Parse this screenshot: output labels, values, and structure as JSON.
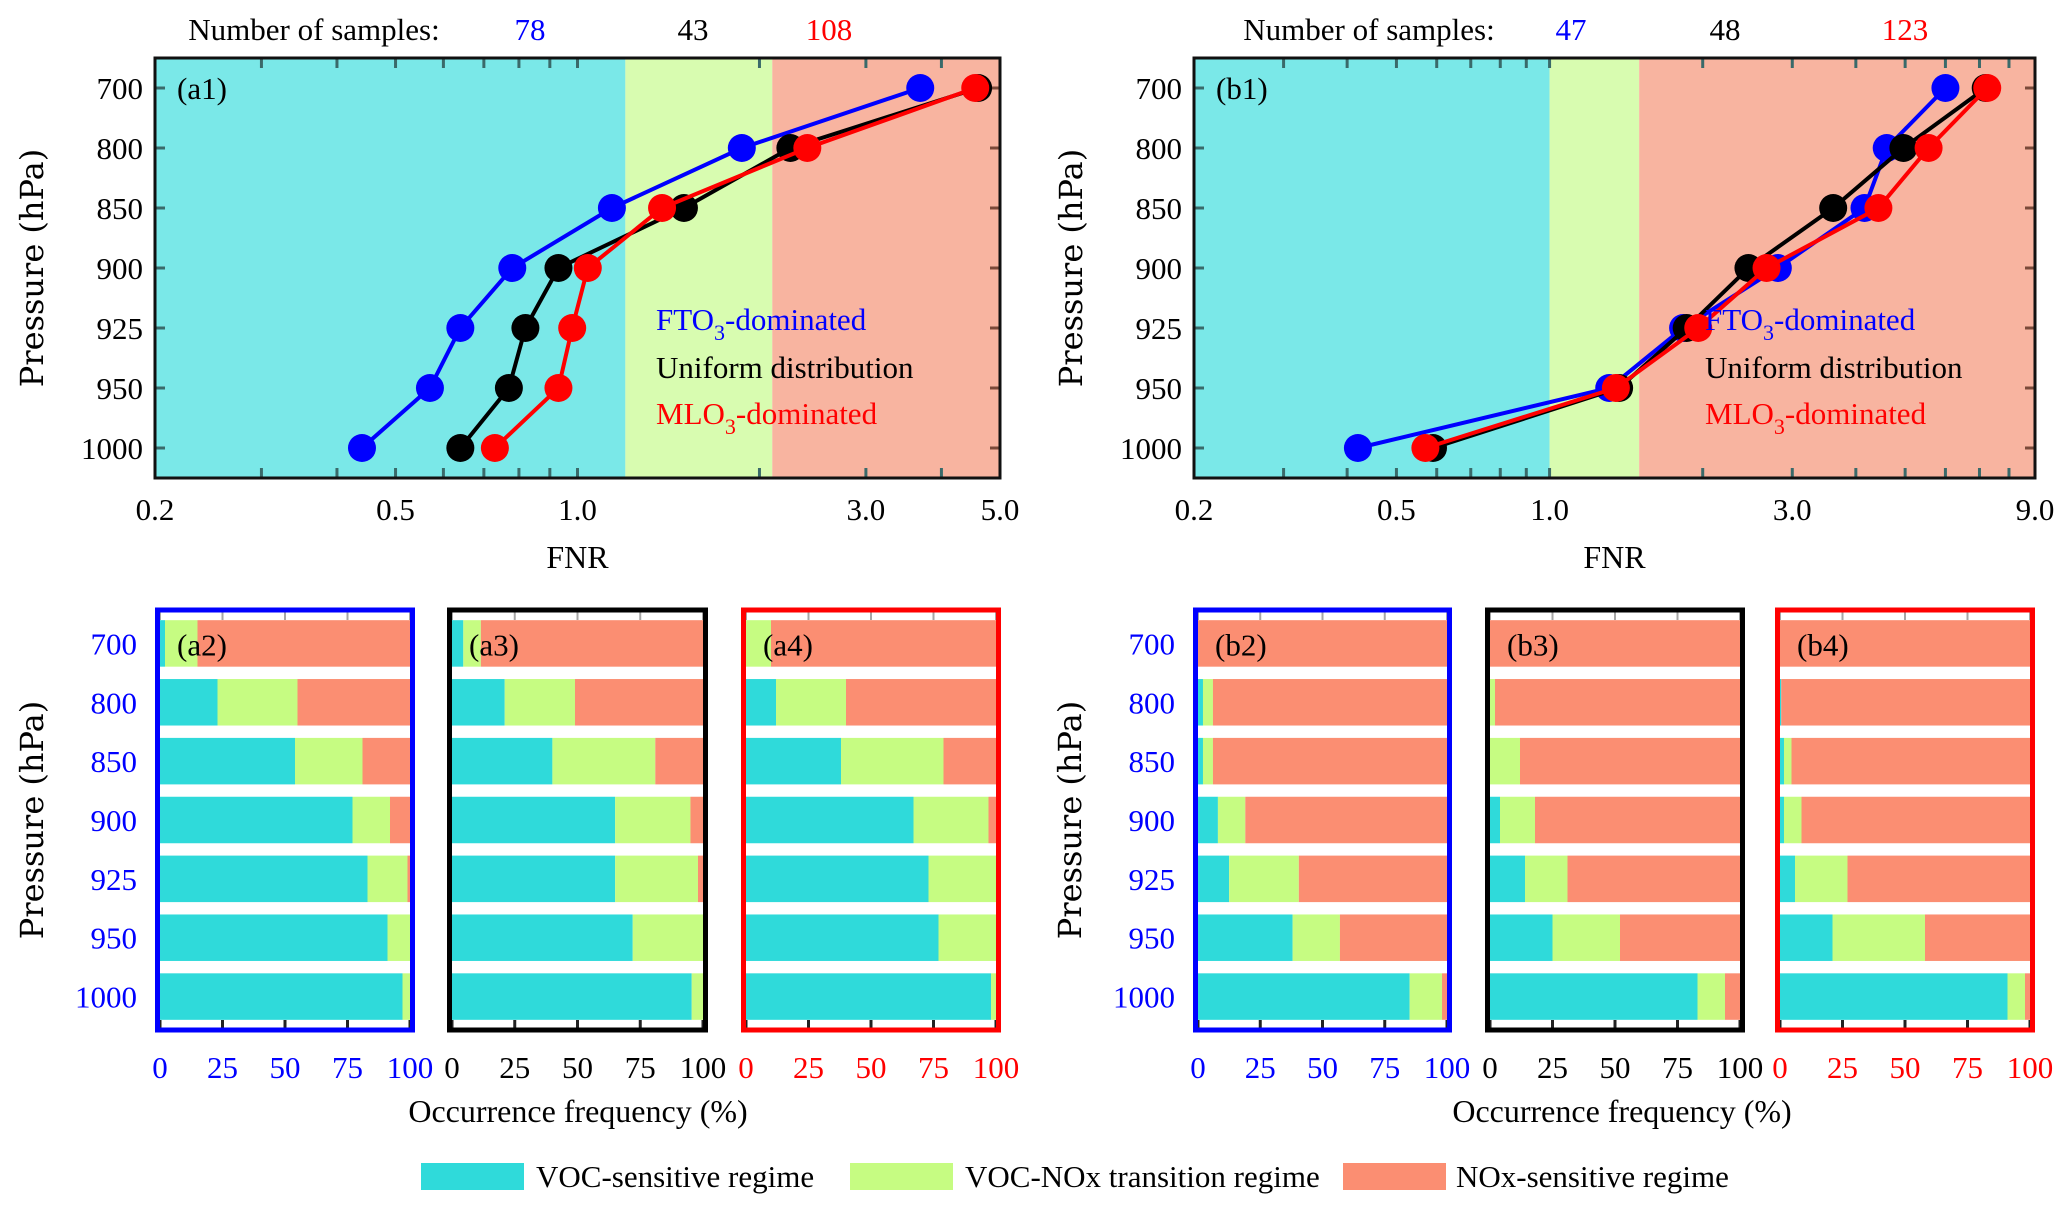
{
  "chart_data": [
    {
      "id": "a1",
      "type": "line",
      "panel_label": "(a1)",
      "xscale": "log",
      "xlim": [
        0.2,
        5.0
      ],
      "xticks": [
        "0.2",
        "0.5",
        "1.0",
        "3.0",
        "5.0"
      ],
      "xlabel": "FNR",
      "ylabel": "Pressure (hPa)",
      "categories": [
        "700",
        "800",
        "850",
        "900",
        "925",
        "950",
        "1000"
      ],
      "samples_label": "Number of samples:",
      "samples": [
        "78",
        "43",
        "108"
      ],
      "regimes_fnr": {
        "voc_sensitive_max": 1.2,
        "transition_max": 2.1
      },
      "series": [
        {
          "name_prefix": "FTO",
          "name_sub": "3",
          "name_suffix": "-dominated",
          "color": "#0000ff",
          "values": [
            3.69,
            1.87,
            1.14,
            0.78,
            0.64,
            0.57,
            0.44
          ]
        },
        {
          "name_prefix": "Uniform distribution",
          "name_sub": "",
          "name_suffix": "",
          "color": "#000000",
          "values": [
            4.6,
            2.25,
            1.5,
            0.93,
            0.82,
            0.77,
            0.64
          ]
        },
        {
          "name_prefix": "MLO",
          "name_sub": "3",
          "name_suffix": "-dominated",
          "color": "#ff0000",
          "values": [
            4.55,
            2.4,
            1.38,
            1.04,
            0.98,
            0.93,
            0.73
          ]
        }
      ]
    },
    {
      "id": "b1",
      "type": "line",
      "panel_label": "(b1)",
      "xscale": "log",
      "xlim": [
        0.2,
        9.0
      ],
      "xticks": [
        "0.2",
        "0.5",
        "1.0",
        "3.0",
        "9.0"
      ],
      "xlabel": "FNR",
      "ylabel": "Pressure (hPa)",
      "categories": [
        "700",
        "800",
        "850",
        "900",
        "925",
        "950",
        "1000"
      ],
      "samples_label": "Number of samples:",
      "samples": [
        "47",
        "48",
        "123"
      ],
      "regimes_fnr": {
        "voc_sensitive_max": 1.0,
        "transition_max": 1.5
      },
      "series": [
        {
          "name_prefix": "FTO",
          "name_sub": "3",
          "name_suffix": "-dominated",
          "color": "#0000ff",
          "values": [
            6.0,
            4.6,
            4.16,
            2.81,
            1.83,
            1.31,
            0.42
          ]
        },
        {
          "name_prefix": "Uniform distribution",
          "name_sub": "",
          "name_suffix": "",
          "color": "#000000",
          "values": [
            7.2,
            4.96,
            3.61,
            2.46,
            1.86,
            1.37,
            0.59
          ]
        },
        {
          "name_prefix": "MLO",
          "name_sub": "3",
          "name_suffix": "-dominated",
          "color": "#ff0000",
          "values": [
            7.25,
            5.56,
            4.43,
            2.67,
            1.96,
            1.35,
            0.57
          ]
        }
      ]
    },
    {
      "id": "a2",
      "type": "bar",
      "stacked": true,
      "orientation": "horizontal",
      "panel_label": "(a2)",
      "frame_color": "#0000ff",
      "xlim": [
        0,
        100
      ],
      "xticks": [
        "0",
        "25",
        "50",
        "75",
        "100"
      ],
      "categories": [
        "700",
        "800",
        "850",
        "900",
        "925",
        "950",
        "1000"
      ],
      "voc": [
        2,
        23,
        54,
        77,
        83,
        91,
        97
      ],
      "transition": [
        13,
        32,
        27,
        15,
        16,
        9,
        3
      ],
      "nox": [
        85,
        45,
        19,
        8,
        1,
        0,
        0
      ]
    },
    {
      "id": "a3",
      "type": "bar",
      "stacked": true,
      "orientation": "horizontal",
      "panel_label": "(a3)",
      "frame_color": "#000000",
      "xlim": [
        0,
        100
      ],
      "xticks": [
        "0",
        "25",
        "50",
        "75",
        "100"
      ],
      "categories": [
        "700",
        "800",
        "850",
        "900",
        "925",
        "950",
        "1000"
      ],
      "voc": [
        4.5,
        21,
        40,
        65,
        65,
        72,
        95.5
      ],
      "transition": [
        7,
        28,
        41,
        30,
        33,
        28,
        4.5
      ],
      "nox": [
        88.5,
        51,
        19,
        5,
        2,
        0,
        0
      ]
    },
    {
      "id": "a4",
      "type": "bar",
      "stacked": true,
      "orientation": "horizontal",
      "panel_label": "(a4)",
      "frame_color": "#ff0000",
      "xlim": [
        0,
        100
      ],
      "xticks": [
        "0",
        "25",
        "50",
        "75",
        "100"
      ],
      "categories": [
        "700",
        "800",
        "850",
        "900",
        "925",
        "950",
        "1000"
      ],
      "voc": [
        0,
        12,
        38,
        67,
        73,
        77,
        98
      ],
      "transition": [
        10,
        28,
        41,
        30,
        27,
        23,
        2
      ],
      "nox": [
        90,
        60,
        21,
        3,
        0,
        0,
        0
      ]
    },
    {
      "id": "b2",
      "type": "bar",
      "stacked": true,
      "orientation": "horizontal",
      "panel_label": "(b2)",
      "frame_color": "#0000ff",
      "xlim": [
        0,
        100
      ],
      "xticks": [
        "0",
        "25",
        "50",
        "75",
        "100"
      ],
      "categories": [
        "700",
        "800",
        "850",
        "900",
        "925",
        "950",
        "1000"
      ],
      "voc": [
        0,
        2,
        2,
        8,
        12.5,
        38,
        85
      ],
      "transition": [
        0,
        4,
        4,
        11,
        28,
        19,
        13
      ],
      "nox": [
        100,
        94,
        94,
        81,
        59.5,
        43,
        2
      ]
    },
    {
      "id": "b3",
      "type": "bar",
      "stacked": true,
      "orientation": "horizontal",
      "panel_label": "(b3)",
      "frame_color": "#000000",
      "xlim": [
        0,
        100
      ],
      "xticks": [
        "0",
        "25",
        "50",
        "75",
        "100"
      ],
      "categories": [
        "700",
        "800",
        "850",
        "900",
        "925",
        "950",
        "1000"
      ],
      "voc": [
        0,
        0,
        0,
        4,
        14,
        25,
        83
      ],
      "transition": [
        0,
        2,
        12,
        14,
        17,
        27,
        11
      ],
      "nox": [
        100,
        98,
        88,
        82,
        69,
        48,
        6
      ]
    },
    {
      "id": "b4",
      "type": "bar",
      "stacked": true,
      "orientation": "horizontal",
      "panel_label": "(b4)",
      "frame_color": "#ff0000",
      "xlim": [
        0,
        100
      ],
      "xticks": [
        "0",
        "25",
        "50",
        "75",
        "100"
      ],
      "categories": [
        "700",
        "800",
        "850",
        "900",
        "925",
        "950",
        "1000"
      ],
      "voc": [
        0,
        0.5,
        1.6,
        1.6,
        6,
        21,
        91
      ],
      "transition": [
        0,
        0,
        3,
        7,
        21,
        37,
        7
      ],
      "nox": [
        100,
        99.5,
        95.4,
        91.4,
        73,
        42,
        2
      ]
    }
  ],
  "bar_axes": {
    "xlabel": "Occurrence frequency (%)",
    "ylabel": "Pressure (hPa)"
  },
  "legend": [
    {
      "label": "VOC-sensitive regime",
      "color": "#2fdada"
    },
    {
      "label": "VOC-NOx transition regime",
      "color": "#c6fc82"
    },
    {
      "label": "NOx-sensitive regime",
      "color": "#fb8e72"
    }
  ],
  "background_colors": {
    "voc": "#7ae8e8",
    "transition": "#d8fcb0",
    "nox": "#f8b4a0"
  }
}
